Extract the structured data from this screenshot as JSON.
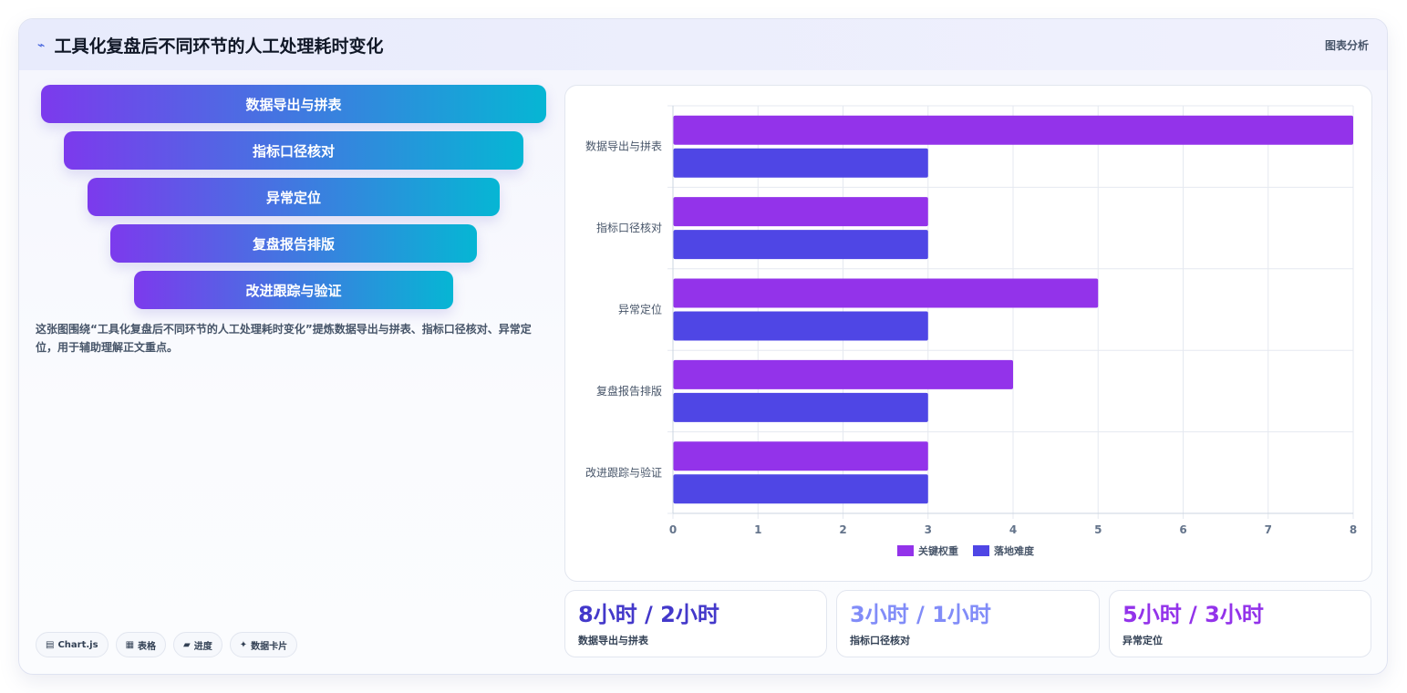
{
  "header": {
    "icon": "line-icon",
    "title": "工具化复盘后不同环节的人工处理耗时变化",
    "tag": "图表分析"
  },
  "funnel": [
    "数据导出与拼表",
    "指标口径核对",
    "异常定位",
    "复盘报告排版",
    "改进跟踪与验证"
  ],
  "description": "这张图围绕“工具化复盘后不同环节的人工处理耗时变化”提炼数据导出与拼表、指标口径核对、异常定位，用于辅助理解正文重点。",
  "badges": [
    {
      "icon": "chart-icon",
      "glyph": "▤",
      "label": "Chart.js"
    },
    {
      "icon": "table-icon",
      "glyph": "▦",
      "label": "表格"
    },
    {
      "icon": "progress-icon",
      "glyph": "▰",
      "label": "进度"
    },
    {
      "icon": "card-icon",
      "glyph": "✦",
      "label": "数据卡片"
    }
  ],
  "chart_data": {
    "type": "bar",
    "orientation": "horizontal",
    "categories": [
      "数据导出与拼表",
      "指标口径核对",
      "异常定位",
      "复盘报告排版",
      "改进跟踪与验证"
    ],
    "series": [
      {
        "name": "关键权重",
        "values": [
          8,
          3,
          5,
          4,
          3
        ],
        "color": "#9333ea"
      },
      {
        "name": "落地难度",
        "values": [
          3,
          3,
          3,
          3,
          3
        ],
        "color": "#4f46e5"
      }
    ],
    "xlim": [
      0,
      8
    ],
    "xticks": [
      0,
      1,
      2,
      3,
      4,
      5,
      6,
      7,
      8
    ],
    "grid": true,
    "legend_position": "bottom"
  },
  "stats": [
    {
      "value": "8小时 / 2小时",
      "label": "数据导出与拼表",
      "color": "#4338ca"
    },
    {
      "value": "3小时 / 1小时",
      "label": "指标口径核对",
      "color": "#818cf8"
    },
    {
      "value": "5小时 / 3小时",
      "label": "异常定位",
      "color": "#9333ea"
    }
  ]
}
